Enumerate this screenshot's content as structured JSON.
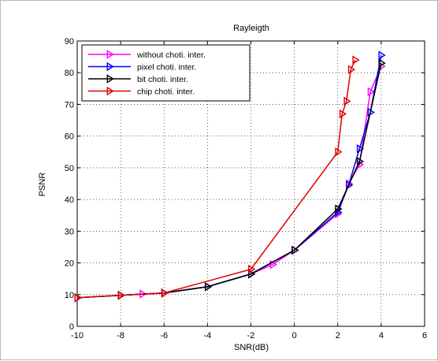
{
  "chart_data": {
    "type": "line",
    "title": "Rayleigth",
    "xlabel": "SNR(dB)",
    "ylabel": "PSNR",
    "xlim": [
      -10,
      6
    ],
    "ylim": [
      0,
      90
    ],
    "xticks": [
      -10,
      -8,
      -6,
      -4,
      -2,
      0,
      2,
      4,
      6
    ],
    "yticks": [
      0,
      10,
      20,
      30,
      40,
      50,
      60,
      70,
      80,
      90
    ],
    "grid": true,
    "legend_position": "top-left",
    "series": [
      {
        "name": "without choti. inter.",
        "color": "#ff00ff",
        "marker": "triangle-right",
        "x": [
          -10,
          -8,
          -7,
          -6,
          -4,
          -2,
          -1,
          0,
          2,
          2.5,
          3,
          3.5,
          4
        ],
        "y": [
          9,
          9.8,
          10.2,
          10.5,
          12.5,
          16.5,
          19.5,
          24,
          35.5,
          45,
          51,
          74,
          82
        ]
      },
      {
        "name": "pixel choti. inter.",
        "color": "#0000ff",
        "marker": "triangle-right",
        "x": [
          -10,
          -8,
          -6,
          -4,
          -2,
          0,
          2,
          2.5,
          3,
          3.5,
          4
        ],
        "y": [
          9,
          9.8,
          10.5,
          12.5,
          16.5,
          24,
          36,
          44.5,
          56,
          67.5,
          85.5
        ]
      },
      {
        "name": "bit choti. inter.",
        "color": "#000000",
        "marker": "triangle-right",
        "x": [
          -10,
          -8,
          -6,
          -4,
          -2,
          0,
          2,
          3,
          4
        ],
        "y": [
          9,
          9.8,
          10.5,
          12.5,
          16.5,
          24,
          37,
          52,
          83
        ]
      },
      {
        "name": "chip choti. inter.",
        "color": "#dd0000",
        "marker": "triangle-right",
        "x": [
          -10,
          -8,
          -6,
          -2,
          2,
          2.2,
          2.4,
          2.6,
          2.8
        ],
        "y": [
          9,
          9.8,
          10.5,
          18,
          55,
          67,
          71,
          81,
          84
        ]
      }
    ]
  }
}
